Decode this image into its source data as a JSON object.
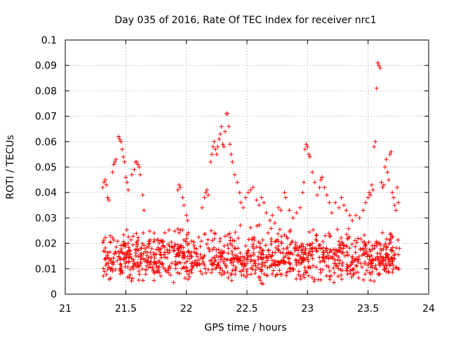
{
  "chart_data": {
    "type": "scatter",
    "title": "Day 035 of 2016, Rate Of TEC Index for receiver nrc1",
    "xlabel": "GPS time / hours",
    "ylabel": "ROTI / TECUs",
    "xlim": [
      21,
      24
    ],
    "ylim": [
      0,
      0.1
    ],
    "x_ticks": [
      "21",
      "21.5",
      "22",
      "22.5",
      "23",
      "23.5",
      "24"
    ],
    "y_ticks": [
      "0",
      "0.01",
      "0.02",
      "0.03",
      "0.04",
      "0.05",
      "0.06",
      "0.07",
      "0.08",
      "0.09",
      "0.1"
    ],
    "grid": true,
    "marker": "+",
    "color": "#ff0000",
    "series": [
      {
        "name": "ROTI",
        "points": [
          [
            21.31,
            0.042
          ],
          [
            21.32,
            0.044
          ],
          [
            21.33,
            0.045
          ],
          [
            21.34,
            0.043
          ],
          [
            21.35,
            0.038
          ],
          [
            21.36,
            0.037
          ],
          [
            21.39,
            0.048
          ],
          [
            21.4,
            0.051
          ],
          [
            21.41,
            0.052
          ],
          [
            21.42,
            0.053
          ],
          [
            21.44,
            0.062
          ],
          [
            21.45,
            0.061
          ],
          [
            21.46,
            0.06
          ],
          [
            21.47,
            0.057
          ],
          [
            21.48,
            0.054
          ],
          [
            21.49,
            0.052
          ],
          [
            21.5,
            0.046
          ],
          [
            21.51,
            0.044
          ],
          [
            21.52,
            0.041
          ],
          [
            21.55,
            0.047
          ],
          [
            21.57,
            0.049
          ],
          [
            21.58,
            0.052
          ],
          [
            21.59,
            0.052
          ],
          [
            21.6,
            0.051
          ],
          [
            21.61,
            0.05
          ],
          [
            21.62,
            0.047
          ],
          [
            21.64,
            0.039
          ],
          [
            21.65,
            0.033
          ],
          [
            21.93,
            0.041
          ],
          [
            21.94,
            0.043
          ],
          [
            21.95,
            0.042
          ],
          [
            21.97,
            0.038
          ],
          [
            21.98,
            0.035
          ],
          [
            22.0,
            0.031
          ],
          [
            22.01,
            0.029
          ],
          [
            22.13,
            0.034
          ],
          [
            22.15,
            0.038
          ],
          [
            22.16,
            0.04
          ],
          [
            22.17,
            0.041
          ],
          [
            22.18,
            0.039
          ],
          [
            22.2,
            0.052
          ],
          [
            22.21,
            0.055
          ],
          [
            22.22,
            0.058
          ],
          [
            22.23,
            0.06
          ],
          [
            22.24,
            0.057
          ],
          [
            22.25,
            0.055
          ],
          [
            22.26,
            0.058
          ],
          [
            22.27,
            0.061
          ],
          [
            22.28,
            0.063
          ],
          [
            22.29,
            0.066
          ],
          [
            22.3,
            0.059
          ],
          [
            22.31,
            0.058
          ],
          [
            22.32,
            0.064
          ],
          [
            22.33,
            0.071
          ],
          [
            22.34,
            0.071
          ],
          [
            22.35,
            0.066
          ],
          [
            22.36,
            0.059
          ],
          [
            22.37,
            0.055
          ],
          [
            22.38,
            0.052
          ],
          [
            22.4,
            0.047
          ],
          [
            22.42,
            0.044
          ],
          [
            22.44,
            0.04
          ],
          [
            22.45,
            0.036
          ],
          [
            22.47,
            0.034
          ],
          [
            22.49,
            0.038
          ],
          [
            22.51,
            0.04
          ],
          [
            22.53,
            0.041
          ],
          [
            22.55,
            0.042
          ],
          [
            22.58,
            0.037
          ],
          [
            22.6,
            0.035
          ],
          [
            22.62,
            0.038
          ],
          [
            22.64,
            0.036
          ],
          [
            22.66,
            0.032
          ],
          [
            22.69,
            0.029
          ],
          [
            22.71,
            0.031
          ],
          [
            22.73,
            0.028
          ],
          [
            22.76,
            0.034
          ],
          [
            22.78,
            0.033
          ],
          [
            22.81,
            0.04
          ],
          [
            22.82,
            0.038
          ],
          [
            22.85,
            0.033
          ],
          [
            22.88,
            0.03
          ],
          [
            22.91,
            0.032
          ],
          [
            22.94,
            0.034
          ],
          [
            22.96,
            0.04
          ],
          [
            22.97,
            0.044
          ],
          [
            22.98,
            0.057
          ],
          [
            22.99,
            0.059
          ],
          [
            23.0,
            0.058
          ],
          [
            23.01,
            0.055
          ],
          [
            23.02,
            0.054
          ],
          [
            23.04,
            0.048
          ],
          [
            23.06,
            0.044
          ],
          [
            23.08,
            0.039
          ],
          [
            23.1,
            0.042
          ],
          [
            23.11,
            0.045
          ],
          [
            23.12,
            0.046
          ],
          [
            23.14,
            0.042
          ],
          [
            23.16,
            0.039
          ],
          [
            23.18,
            0.036
          ],
          [
            23.2,
            0.032
          ],
          [
            23.23,
            0.036
          ],
          [
            23.26,
            0.034
          ],
          [
            23.28,
            0.038
          ],
          [
            23.3,
            0.035
          ],
          [
            23.32,
            0.033
          ],
          [
            23.35,
            0.031
          ],
          [
            23.37,
            0.029
          ],
          [
            23.4,
            0.031
          ],
          [
            23.43,
            0.03
          ],
          [
            23.46,
            0.033
          ],
          [
            23.48,
            0.036
          ],
          [
            23.5,
            0.038
          ],
          [
            23.51,
            0.04
          ],
          [
            23.52,
            0.039
          ],
          [
            23.53,
            0.043
          ],
          [
            23.54,
            0.041
          ],
          [
            23.55,
            0.058
          ],
          [
            23.56,
            0.06
          ],
          [
            23.57,
            0.081
          ],
          [
            23.58,
            0.091
          ],
          [
            23.59,
            0.09
          ],
          [
            23.6,
            0.089
          ],
          [
            23.61,
            0.044
          ],
          [
            23.62,
            0.042
          ],
          [
            23.63,
            0.043
          ],
          [
            23.64,
            0.05
          ],
          [
            23.65,
            0.053
          ],
          [
            23.66,
            0.048
          ],
          [
            23.67,
            0.045
          ],
          [
            23.68,
            0.055
          ],
          [
            23.69,
            0.056
          ],
          [
            23.7,
            0.04
          ],
          [
            23.71,
            0.038
          ],
          [
            23.72,
            0.035
          ],
          [
            23.73,
            0.033
          ],
          [
            23.74,
            0.042
          ],
          [
            23.75,
            0.036
          ]
        ],
        "dense_band": {
          "x_range": [
            21.31,
            23.76
          ],
          "typical_range": [
            0.003,
            0.028
          ],
          "center": 0.012,
          "approx_count": 1100
        }
      }
    ]
  }
}
